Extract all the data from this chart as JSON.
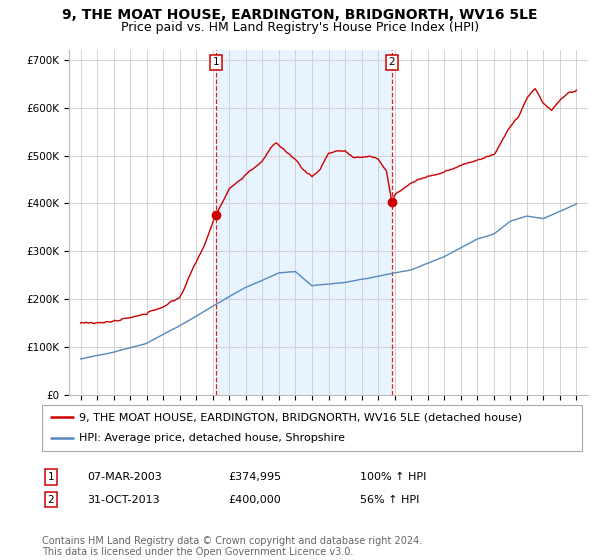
{
  "title": "9, THE MOAT HOUSE, EARDINGTON, BRIDGNORTH, WV16 5LE",
  "subtitle": "Price paid vs. HM Land Registry's House Price Index (HPI)",
  "ylim": [
    0,
    720000
  ],
  "yticks": [
    0,
    100000,
    200000,
    300000,
    400000,
    500000,
    600000,
    700000
  ],
  "ytick_labels": [
    "£0",
    "£100K",
    "£200K",
    "£300K",
    "£400K",
    "£500K",
    "£600K",
    "£700K"
  ],
  "grid_color": "#cccccc",
  "red_color": "#cc0000",
  "blue_color": "#5588bb",
  "shade_color": "#ddeeff",
  "marker1_year": 2003.18,
  "marker2_year": 2013.83,
  "legend_red_label": "9, THE MOAT HOUSE, EARDINGTON, BRIDGNORTH, WV16 5LE (detached house)",
  "legend_blue_label": "HPI: Average price, detached house, Shropshire",
  "table_data": [
    [
      "1",
      "07-MAR-2003",
      "£374,995",
      "100% ↑ HPI"
    ],
    [
      "2",
      "31-OCT-2013",
      "£400,000",
      "56% ↑ HPI"
    ]
  ],
  "footer": "Contains HM Land Registry data © Crown copyright and database right 2024.\nThis data is licensed under the Open Government Licence v3.0.",
  "title_fontsize": 10,
  "subtitle_fontsize": 9,
  "tick_fontsize": 7.5,
  "legend_fontsize": 8,
  "table_fontsize": 8,
  "footer_fontsize": 7
}
